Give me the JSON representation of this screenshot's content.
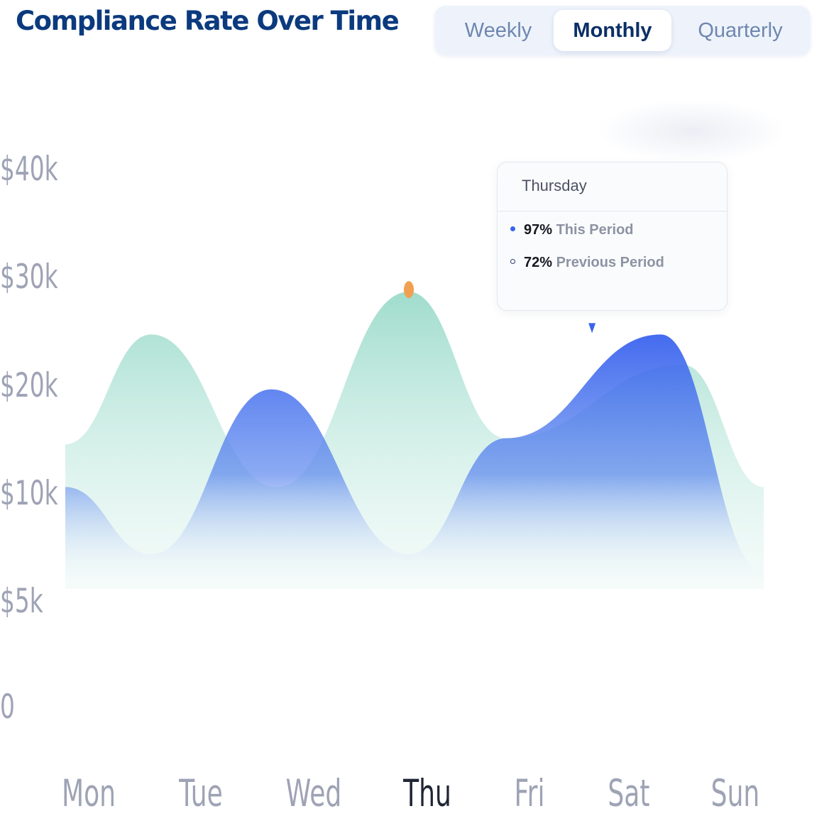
{
  "title": "Compliance Rate Over Time",
  "period_toggle": {
    "options": [
      "Weekly",
      "Monthly",
      "Quarterly"
    ],
    "selected": "Monthly"
  },
  "tooltip": {
    "day": "Thursday",
    "this_period_value": "97%",
    "this_period_label": "This Period",
    "previous_period_value": "72%",
    "previous_period_label": "Previous Period"
  },
  "colors": {
    "this_period": "#3a63ee",
    "previous_period": "#8fd6c4",
    "marker": "#f0a050",
    "title": "#0b3a7e"
  },
  "chart_data": {
    "type": "area",
    "categories": [
      "Mon",
      "Tue",
      "Wed",
      "Thu",
      "Fri",
      "Sat",
      "Sun"
    ],
    "highlight_category": "Thu",
    "y_ticks": [
      "$40k",
      "$30k",
      "$20k",
      "$10k",
      "$5k",
      "0"
    ],
    "y_tick_values": [
      40,
      30,
      20,
      10,
      5,
      0
    ],
    "y_unit": "k",
    "ylim": [
      0,
      40
    ],
    "grid": false,
    "series": [
      {
        "key": "previous",
        "x": [
          0,
          0.75,
          1.85,
          3.0,
          3.85,
          5.4,
          6.1
        ],
        "values": [
          16.5,
          25.5,
          13,
          29,
          17,
          23,
          13
        ]
      },
      {
        "key": "this",
        "x": [
          0,
          0.75,
          1.8,
          3.0,
          3.85,
          5.2,
          6.1
        ],
        "values": [
          13,
          7.5,
          21,
          7.5,
          17,
          25.5,
          6
        ]
      }
    ],
    "markers": [
      {
        "series": "previous",
        "x": 3.0,
        "y": 29
      },
      {
        "series": "this",
        "x": 4.6,
        "y": 25.5
      }
    ]
  }
}
